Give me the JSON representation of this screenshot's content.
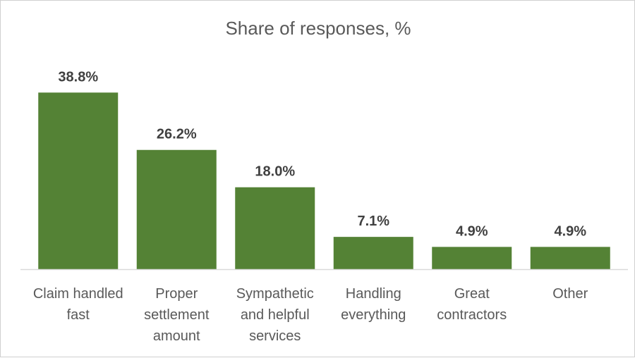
{
  "chart_data": {
    "type": "bar",
    "title": "Share of responses, %",
    "xlabel": "",
    "ylabel": "",
    "categories": [
      [
        "Claim handled",
        "fast"
      ],
      [
        "Proper",
        "settlement",
        "amount"
      ],
      [
        "Sympathetic",
        "and helpful",
        "services"
      ],
      [
        "Handling",
        "everything"
      ],
      [
        "Great",
        "contractors"
      ],
      [
        "Other"
      ]
    ],
    "values": [
      38.8,
      26.2,
      18.0,
      7.1,
      4.9,
      4.9
    ],
    "data_labels": [
      "38.8%",
      "26.2%",
      "18.0%",
      "7.1%",
      "4.9%",
      "4.9%"
    ],
    "ylim": [
      0,
      40
    ],
    "grid": false,
    "legend": "none",
    "colors": {
      "bar": "#548235",
      "axis": "#d9d9d9",
      "text": "#595959",
      "label": "#404040"
    }
  }
}
